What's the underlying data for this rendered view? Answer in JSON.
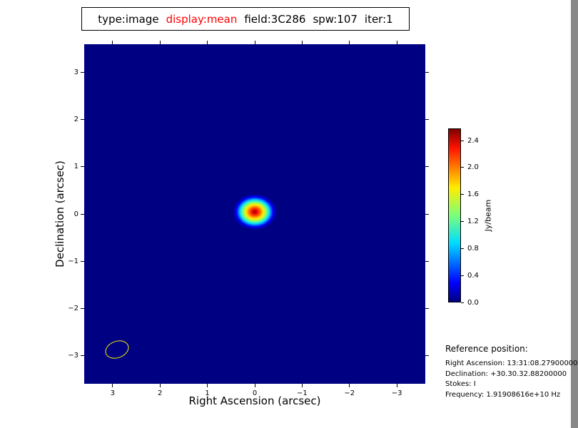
{
  "header": {
    "segments": [
      {
        "text": "type:image",
        "color": "#000000"
      },
      {
        "text": "display:mean",
        "color": "#ff0000"
      },
      {
        "text": "field:3C286",
        "color": "#000000"
      },
      {
        "text": "spw:107",
        "color": "#000000"
      },
      {
        "text": "iter:1",
        "color": "#000000"
      }
    ]
  },
  "chart_data": {
    "type": "heatmap",
    "title": "type:image display:mean field:3C286 spw:107 iter:1",
    "xlabel": "Right Ascension (arcsec)",
    "ylabel": "Declination (arcsec)",
    "xlim": [
      3.6,
      -3.6
    ],
    "ylim": [
      -3.6,
      3.6
    ],
    "x_ticks": {
      "values": [
        3,
        2,
        1,
        0,
        -1,
        -2,
        -3
      ],
      "labels": [
        "3",
        "2",
        "1",
        "0",
        "−1",
        "−2",
        "−3"
      ]
    },
    "y_ticks": {
      "values": [
        3,
        2,
        1,
        0,
        -1,
        -2,
        -3
      ],
      "labels": [
        "3",
        "2",
        "1",
        "0",
        "−1",
        "−2",
        "−3"
      ]
    },
    "colormap": "jet",
    "background_color": "#000082",
    "grid": false,
    "source": {
      "x": 0.0,
      "y": 0.05,
      "peak_jy_per_beam": 2.6,
      "shape": "elliptical-gaussian"
    },
    "beam": {
      "x": 2.9,
      "y": -2.87,
      "color": "#f2f200"
    },
    "colorbar": {
      "label": "Jy/beam",
      "tick_values": [
        0.0,
        0.4,
        0.8,
        1.2,
        1.6,
        2.0,
        2.4
      ],
      "tick_labels": [
        "0.0",
        "0.4",
        "0.8",
        "1.2",
        "1.6",
        "2.0",
        "2.4"
      ],
      "vmin": 0.0,
      "vmax": 2.58
    }
  },
  "reference": {
    "title": "Reference position:",
    "lines": [
      "Right Ascension: 13:31:08.27900000",
      "Declination: +30.30.32.88200000",
      "Stokes: I",
      "Frequency: 1.91908616e+10 Hz"
    ]
  }
}
